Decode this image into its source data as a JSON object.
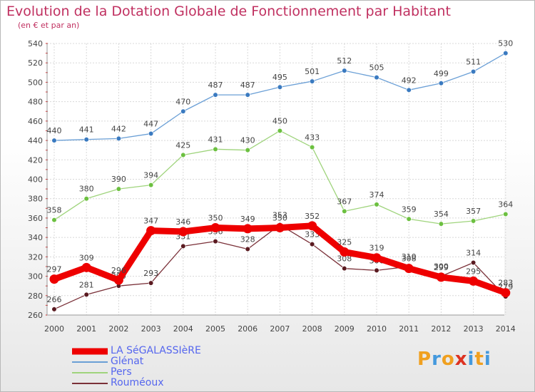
{
  "title": "Evolution de la Dotation Globale de Fonctionnement par Habitant",
  "subtitle": "(en € et par an)",
  "logo": {
    "text": "Proxiti",
    "colors": [
      "#f0a020",
      "#4499dd",
      "#f0a020",
      "#dd3322",
      "#4499dd",
      "#f0a020",
      "#4499dd"
    ]
  },
  "chart_data": {
    "type": "line",
    "x": [
      2000,
      2001,
      2002,
      2003,
      2004,
      2005,
      2006,
      2007,
      2008,
      2009,
      2010,
      2011,
      2012,
      2013,
      2014
    ],
    "ylim": [
      260,
      540
    ],
    "yticks": [
      260,
      280,
      300,
      320,
      340,
      360,
      380,
      400,
      420,
      440,
      460,
      480,
      500,
      520,
      540
    ],
    "grid": true,
    "legend_position": "bottom-left",
    "series": [
      {
        "name": "Glénat",
        "color": "#6a9fd6",
        "marker": "#3a7ac0",
        "values": [
          440,
          441,
          442,
          447,
          470,
          487,
          487,
          495,
          501,
          512,
          505,
          492,
          499,
          511,
          530
        ]
      },
      {
        "name": "Pers",
        "color": "#9fd47c",
        "marker": "#6cc040",
        "values": [
          358,
          380,
          390,
          394,
          425,
          431,
          430,
          450,
          433,
          367,
          374,
          359,
          354,
          357,
          364
        ]
      },
      {
        "name": "Rouméoux",
        "color": "#7a3038",
        "marker": "#5a1a20",
        "values": [
          266,
          281,
          290,
          293,
          331,
          336,
          328,
          353,
          333,
          308,
          306,
          310,
          300,
          314,
          279
        ]
      },
      {
        "name": "LA SéGALASSIèRE",
        "color": "#ee0000",
        "marker": "#ee0000",
        "values": [
          297,
          309,
          296,
          347,
          346,
          350,
          349,
          350,
          352,
          325,
          319,
          308,
          299,
          295,
          283
        ]
      }
    ],
    "legend_order": [
      "LA SéGALASSIèRE",
      "Glénat",
      "Pers",
      "Rouméoux"
    ]
  }
}
